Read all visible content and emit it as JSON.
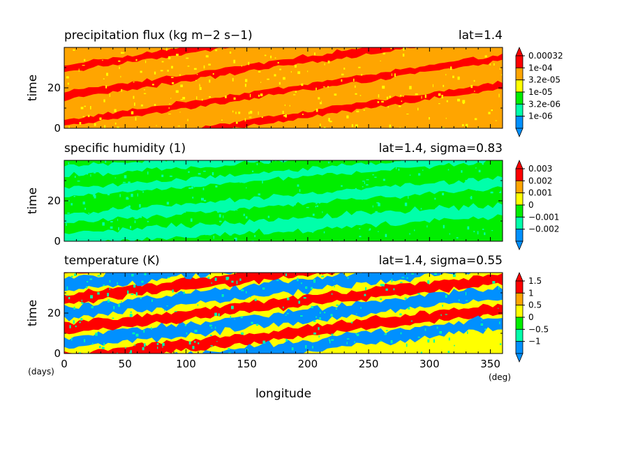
{
  "chart_data": [
    {
      "type": "heatmap",
      "title": "precipitation flux (kg m−2 s−1)",
      "subtitle": "lat=1.4",
      "xlabel": "longitude",
      "ylabel": "time",
      "xlim": [
        0,
        360
      ],
      "ylim": [
        0,
        40
      ],
      "yticks": [
        "0",
        "20"
      ],
      "colorbar": {
        "labels": [
          "0.00032",
          "1e-04",
          "3.2e-05",
          "1e-05",
          "3.2e-06",
          "1e-06"
        ],
        "colors": [
          "#ff0000",
          "#ffa500",
          "#ffff00",
          "#00ee00",
          "#00ffaa",
          "#0090ff"
        ]
      },
      "background_color": "#ffa500",
      "bands": [
        {
          "color": "#ff0000",
          "slope": 0.09,
          "intercept": 2.5,
          "width": 1.6
        },
        {
          "color": "#ff0000",
          "slope": 0.09,
          "intercept": 16.0,
          "width": 1.8
        },
        {
          "color": "#ff0000",
          "slope": 0.09,
          "intercept": 29.5,
          "width": 1.6
        },
        {
          "color": "#ff0000",
          "slope": 0.09,
          "intercept": -11.0,
          "width": 1.6
        }
      ],
      "speckle_color": "#ffff00"
    },
    {
      "type": "heatmap",
      "title": "specific humidity (1)",
      "subtitle": "lat=1.4, sigma=0.83",
      "xlabel": "longitude",
      "ylabel": "time",
      "xlim": [
        0,
        360
      ],
      "ylim": [
        0,
        40
      ],
      "yticks": [
        "0",
        "20"
      ],
      "colorbar": {
        "labels": [
          "0.003",
          "0.002",
          "0.001",
          "0",
          "−0.001",
          "−0.002"
        ],
        "colors": [
          "#ff0000",
          "#ffa500",
          "#ffff00",
          "#00ee00",
          "#00ffaa",
          "#0090ff"
        ]
      },
      "background_color": "#00ee00",
      "bands": [
        {
          "color": "#00ffaa",
          "slope": 0.04,
          "intercept": 1.0,
          "width": 3.0
        },
        {
          "color": "#00ffaa",
          "slope": 0.05,
          "intercept": 11.0,
          "width": 2.5
        },
        {
          "color": "#00ffaa",
          "slope": 0.05,
          "intercept": 24.0,
          "width": 2.0
        },
        {
          "color": "#00ffaa",
          "slope": 0.04,
          "intercept": 35.0,
          "width": 2.5
        }
      ],
      "speckle_color": "#00ffaa"
    },
    {
      "type": "heatmap",
      "title": "temperature (K)",
      "subtitle": "lat=1.4, sigma=0.55",
      "xlabel": "longitude",
      "ylabel": "time",
      "xlim": [
        0,
        360
      ],
      "ylim": [
        0,
        40
      ],
      "xticks": [
        "0",
        "50",
        "100",
        "150",
        "200",
        "250",
        "300",
        "350"
      ],
      "yticks": [
        "0",
        "20"
      ],
      "colorbar": {
        "labels": [
          "1.5",
          "1",
          "0.5",
          "0",
          "−0.5",
          "−1"
        ],
        "colors": [
          "#ff0000",
          "#ffa500",
          "#ffff00",
          "#00ee00",
          "#00ffaa",
          "#0090ff"
        ]
      },
      "background_color": "#ffff00",
      "bands": [
        {
          "color": "#0090ff",
          "slope": 0.07,
          "intercept": 5.0,
          "width": 3.0
        },
        {
          "color": "#ff0000",
          "slope": 0.07,
          "intercept": 12.0,
          "width": 2.5
        },
        {
          "color": "#0090ff",
          "slope": 0.07,
          "intercept": 20.0,
          "width": 3.0
        },
        {
          "color": "#ff0000",
          "slope": 0.07,
          "intercept": 27.0,
          "width": 2.5
        },
        {
          "color": "#0090ff",
          "slope": 0.07,
          "intercept": 34.0,
          "width": 3.0
        },
        {
          "color": "#ff0000",
          "slope": 0.07,
          "intercept": 41.0,
          "width": 2.5
        },
        {
          "color": "#ff0000",
          "slope": 0.07,
          "intercept": -3.0,
          "width": 2.5
        },
        {
          "color": "#0090ff",
          "slope": 0.07,
          "intercept": -10.0,
          "width": 3.0
        }
      ],
      "speckle_color": "#00ffaa"
    }
  ],
  "x_unit": "(deg)",
  "y_unit": "(days)"
}
